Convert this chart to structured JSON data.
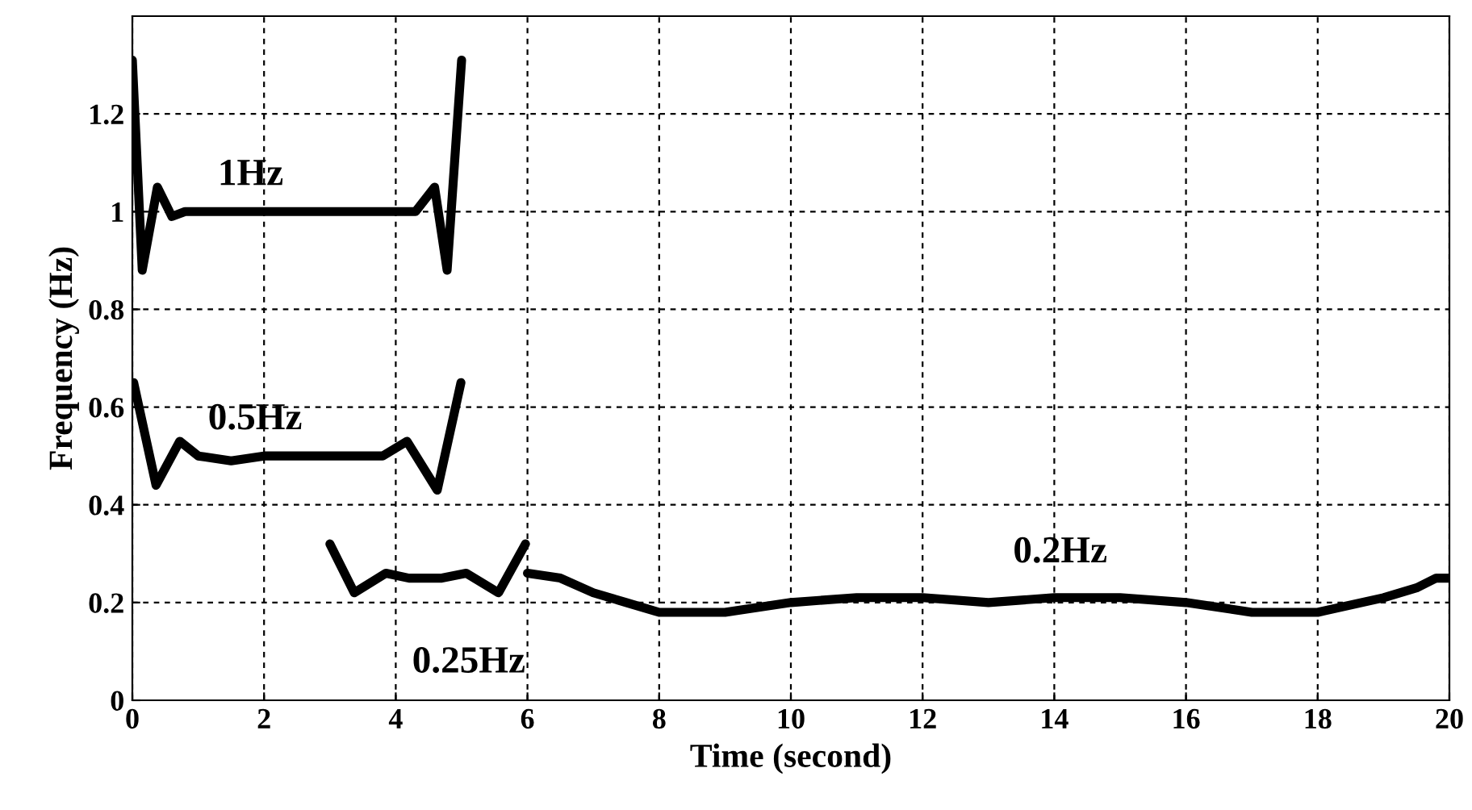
{
  "chart_data": {
    "type": "line",
    "xlabel": "Time (second)",
    "ylabel": "Frequency (Hz)",
    "xlim": [
      0,
      20
    ],
    "xticks": [
      0,
      2,
      4,
      6,
      8,
      10,
      12,
      14,
      16,
      18,
      20
    ],
    "ylim": [
      0,
      1.4
    ],
    "yticks": [
      0,
      0.2,
      0.4,
      0.6,
      0.8,
      1,
      1.2
    ],
    "grid": true,
    "line_style": "solid",
    "marker": "none",
    "series": [
      {
        "name": "1Hz",
        "color": "#000000",
        "x": [
          0,
          0.15,
          0.38,
          0.6,
          0.8,
          1.5,
          2,
          3,
          4,
          4.3,
          4.59,
          4.78,
          5.0
        ],
        "values": [
          1.31,
          0.88,
          1.05,
          0.99,
          1.0,
          1.0,
          1.0,
          1.0,
          1.0,
          1.0,
          1.05,
          0.88,
          1.31
        ]
      },
      {
        "name": "0.5Hz",
        "color": "#000000",
        "x": [
          0.02,
          0.36,
          0.72,
          1.0,
          1.5,
          2,
          3,
          3.8,
          4.17,
          4.63,
          4.99
        ],
        "values": [
          0.65,
          0.44,
          0.53,
          0.5,
          0.49,
          0.5,
          0.5,
          0.5,
          0.53,
          0.43,
          0.65
        ]
      },
      {
        "name": "0.25Hz",
        "color": "#000000",
        "x": [
          3.0,
          3.37,
          3.85,
          4.2,
          4.7,
          5.07,
          5.56,
          5.97
        ],
        "values": [
          0.32,
          0.22,
          0.26,
          0.25,
          0.25,
          0.26,
          0.22,
          0.32
        ]
      },
      {
        "name": "0.2Hz",
        "color": "#000000",
        "x": [
          6,
          6.5,
          7,
          7.5,
          8,
          9,
          10,
          11,
          12,
          13,
          14,
          15,
          16,
          17,
          18,
          19,
          19.5,
          19.8,
          20
        ],
        "values": [
          0.26,
          0.25,
          0.22,
          0.2,
          0.18,
          0.18,
          0.2,
          0.21,
          0.21,
          0.2,
          0.21,
          0.21,
          0.2,
          0.18,
          0.18,
          0.21,
          0.23,
          0.25,
          0.25
        ]
      }
    ]
  }
}
